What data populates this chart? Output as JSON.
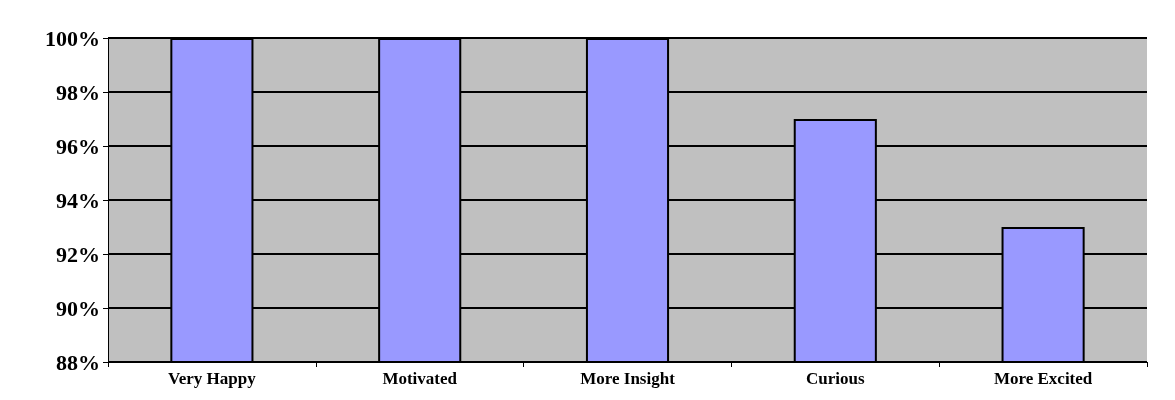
{
  "chart_data": {
    "type": "bar",
    "categories": [
      "Very Happy",
      "Motivated",
      "More Insight",
      "Curious",
      "More Excited"
    ],
    "values": [
      100,
      100,
      100,
      97,
      93
    ],
    "color": "#9999ff",
    "ylim": [
      88,
      100
    ],
    "yticks": [
      {
        "value": 88,
        "label": "88%"
      },
      {
        "value": 90,
        "label": "90%"
      },
      {
        "value": 92,
        "label": "92%"
      },
      {
        "value": 94,
        "label": "94%"
      },
      {
        "value": 96,
        "label": "96%"
      },
      {
        "value": 98,
        "label": "98%"
      },
      {
        "value": 100,
        "label": "100%"
      }
    ],
    "grid": "y"
  }
}
